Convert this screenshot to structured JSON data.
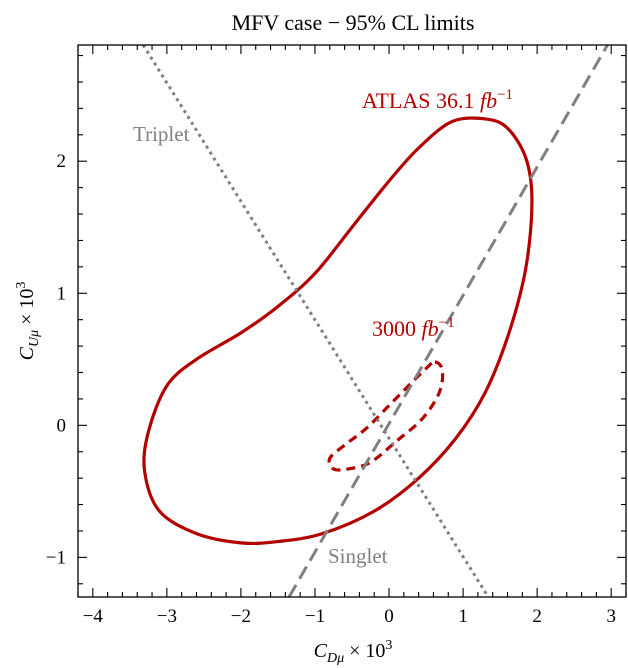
{
  "chart_data": {
    "type": "contour",
    "title": "MFV case − 95% CL limits",
    "xlabel": {
      "main": "C",
      "sub": "Dμ",
      "suffix": " × 10",
      "sup": "3"
    },
    "ylabel": {
      "main": "C",
      "sub": "Uμ",
      "suffix": " × 10",
      "sup": "3"
    },
    "xlim": [
      -4.2,
      3.2
    ],
    "ylim": [
      -1.3,
      2.88
    ],
    "xticks": [
      -4,
      -3,
      -2,
      -1,
      0,
      1,
      2,
      3
    ],
    "yticks": [
      -1,
      0,
      1,
      2
    ],
    "xtick_labels": [
      "−4",
      "−3",
      "−2",
      "−1",
      "0",
      "1",
      "2",
      "3"
    ],
    "ytick_labels": [
      "−1",
      "0",
      "1",
      "2"
    ],
    "grid": false,
    "series": [
      {
        "label_parts": {
          "text": "ATLAS 36.1 ",
          "italic": "fb",
          "sup": "−1"
        },
        "color": "#b30000",
        "style": "solid",
        "closed": true,
        "points": [
          [
            1.3,
            2.32
          ],
          [
            1.6,
            2.25
          ],
          [
            1.85,
            2.02
          ],
          [
            1.93,
            1.7
          ],
          [
            1.85,
            1.2
          ],
          [
            1.62,
            0.7
          ],
          [
            1.3,
            0.25
          ],
          [
            0.9,
            -0.1
          ],
          [
            0.4,
            -0.4
          ],
          [
            -0.2,
            -0.65
          ],
          [
            -0.9,
            -0.82
          ],
          [
            -1.5,
            -0.88
          ],
          [
            -2.0,
            -0.89
          ],
          [
            -2.6,
            -0.82
          ],
          [
            -3.1,
            -0.65
          ],
          [
            -3.3,
            -0.35
          ],
          [
            -3.25,
            -0.05
          ],
          [
            -3.0,
            0.3
          ],
          [
            -2.6,
            0.5
          ],
          [
            -2.0,
            0.7
          ],
          [
            -1.5,
            0.9
          ],
          [
            -1.0,
            1.15
          ],
          [
            -0.5,
            1.5
          ],
          [
            0.0,
            1.85
          ],
          [
            0.4,
            2.1
          ],
          [
            0.85,
            2.3
          ]
        ]
      },
      {
        "label_parts": {
          "text": "3000 ",
          "italic": "fb",
          "sup": "−1"
        },
        "color": "#b30000",
        "style": "dashed",
        "closed": true,
        "points": [
          [
            0.62,
            0.48
          ],
          [
            0.72,
            0.42
          ],
          [
            0.68,
            0.25
          ],
          [
            0.45,
            0.05
          ],
          [
            0.1,
            -0.12
          ],
          [
            -0.25,
            -0.28
          ],
          [
            -0.55,
            -0.33
          ],
          [
            -0.75,
            -0.33
          ],
          [
            -0.8,
            -0.25
          ],
          [
            -0.6,
            -0.15
          ],
          [
            -0.3,
            -0.02
          ],
          [
            0.0,
            0.15
          ],
          [
            0.3,
            0.32
          ],
          [
            0.5,
            0.43
          ]
        ]
      },
      {
        "name": "Triplet",
        "color": "#808080",
        "style": "dotted",
        "points": [
          [
            -3.32,
            2.88
          ],
          [
            1.34,
            -1.3
          ]
        ]
      },
      {
        "name": "Singlet",
        "color": "#808080",
        "style": "dashed",
        "points": [
          [
            -1.35,
            -1.3
          ],
          [
            2.95,
            2.88
          ]
        ]
      }
    ],
    "annotations_placement": {
      "ATLAS 36.1": "upper-right of solid contour",
      "3000": "above dashed contour",
      "Triplet": "upper-left, beside dotted line",
      "Singlet": "bottom-center, beside dashed line"
    }
  }
}
